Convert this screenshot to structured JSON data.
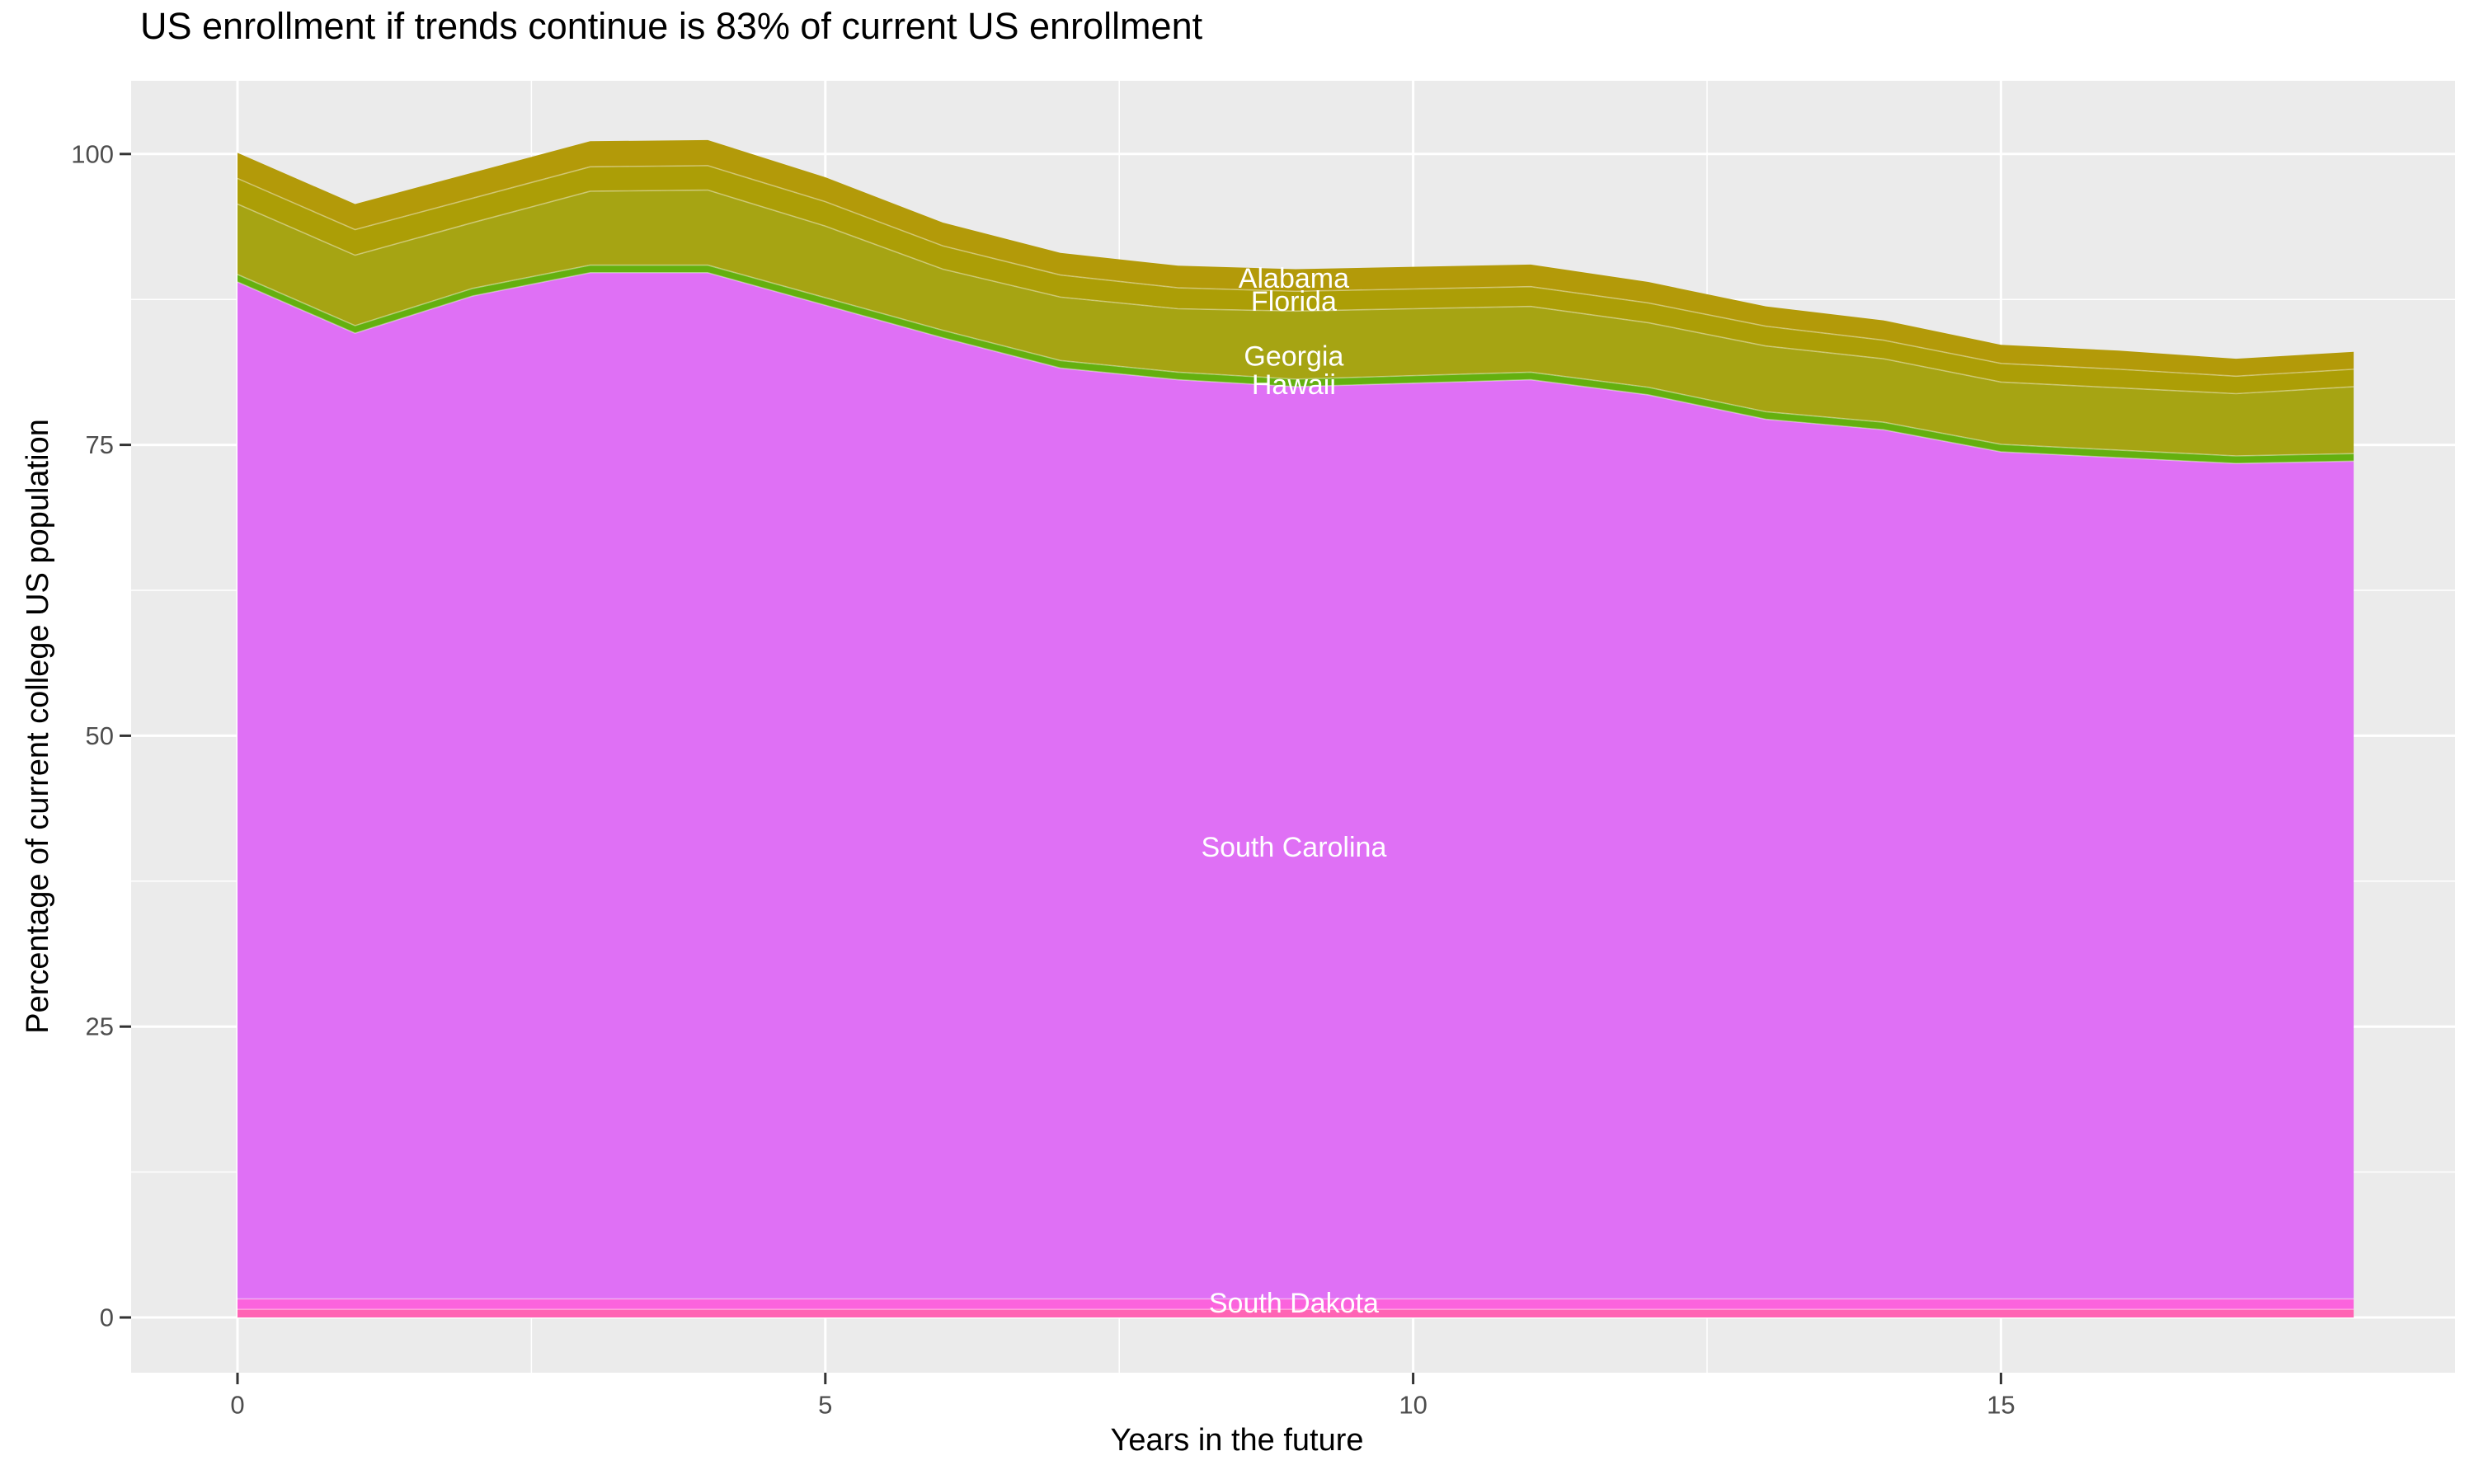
{
  "chart_data": {
    "type": "area",
    "stacked": true,
    "title": "US enrollment if trends continue is 83% of current US enrollment",
    "xlabel": "Years in the future",
    "ylabel": "Percentage of current college US population",
    "x": [
      0,
      1,
      2,
      3,
      4,
      5,
      6,
      7,
      8,
      9,
      10,
      11,
      12,
      13,
      14,
      15,
      16,
      17,
      18
    ],
    "x_ticks": [
      0,
      5,
      10,
      15
    ],
    "y_ticks": [
      0,
      25,
      50,
      75,
      100
    ],
    "xlim": [
      0,
      18
    ],
    "ylim": [
      0,
      106
    ],
    "grid": "white major and minor gridlines on gray panel",
    "legend_position": "none (direct area labels)",
    "series": [
      {
        "name": "",
        "color": "#FF64B4",
        "values": [
          0.7,
          0.7,
          0.7,
          0.7,
          0.7,
          0.7,
          0.7,
          0.7,
          0.7,
          0.7,
          0.7,
          0.7,
          0.7,
          0.7,
          0.7,
          0.7,
          0.7,
          0.7,
          0.7
        ]
      },
      {
        "name": "South Dakota",
        "color": "#FB63DD",
        "values": [
          0.9,
          0.9,
          0.9,
          0.9,
          0.9,
          0.9,
          0.9,
          0.9,
          0.9,
          0.9,
          0.9,
          0.9,
          0.9,
          0.9,
          0.9,
          0.9,
          0.9,
          0.9,
          0.9
        ]
      },
      {
        "name": "South Carolina",
        "color": "#DF70F5",
        "values": [
          87.4,
          83.0,
          86.2,
          88.2,
          88.2,
          85.4,
          82.6,
          80.0,
          79.0,
          78.4,
          78.7,
          79.0,
          77.7,
          75.6,
          74.7,
          72.8,
          72.3,
          71.8,
          72.0
        ]
      },
      {
        "name": "Hawaii",
        "color": "#64B00F",
        "values": [
          0.65,
          0.65,
          0.65,
          0.65,
          0.65,
          0.65,
          0.65,
          0.65,
          0.65,
          0.65,
          0.65,
          0.65,
          0.65,
          0.65,
          0.65,
          0.65,
          0.65,
          0.65,
          0.65
        ]
      },
      {
        "name": "Georgia",
        "color": "#A6A413",
        "values": [
          6.05,
          6.05,
          5.65,
          6.35,
          6.45,
          6.15,
          5.25,
          5.45,
          5.45,
          5.85,
          5.75,
          5.65,
          5.55,
          5.65,
          5.45,
          5.35,
          5.35,
          5.35,
          5.75
        ]
      },
      {
        "name": "Florida",
        "color": "#AC9E06",
        "values": [
          2.2,
          2.2,
          2.1,
          2.1,
          2.1,
          2.1,
          2.0,
          1.9,
          1.8,
          1.7,
          1.7,
          1.7,
          1.7,
          1.7,
          1.6,
          1.6,
          1.6,
          1.5,
          1.5
        ]
      },
      {
        "name": "Alabama",
        "color": "#B39A09",
        "values": [
          2.2,
          2.2,
          2.2,
          2.2,
          2.2,
          2.1,
          2.0,
          1.9,
          1.9,
          1.9,
          1.9,
          1.9,
          1.8,
          1.7,
          1.7,
          1.6,
          1.6,
          1.5,
          1.5
        ]
      }
    ],
    "totals_note": "stack top runs from 100 at year 0 (dip 95.7 at year 1, peak 101.2 at years 3-4) down to 83 at year 18",
    "area_labels": [
      {
        "text": "Alabama",
        "x": 8.985,
        "y": 89.3
      },
      {
        "text": "Florida",
        "x": 8.985,
        "y": 87.3
      },
      {
        "text": "Georgia",
        "x": 8.985,
        "y": 82.6
      },
      {
        "text": "Hawaii",
        "x": 8.985,
        "y": 80.15
      },
      {
        "text": "South Carolina",
        "x": 8.985,
        "y": 40.4
      },
      {
        "text": "South Dakota",
        "x": 8.985,
        "y": 1.2
      }
    ],
    "colors": {
      "panel_bg": "#EBEBEB",
      "grid": "#FFFFFF",
      "tick_mark": "#333333",
      "tick_label": "#4D4D4D",
      "area_label_text": "#FFFFFF",
      "title_text": "#000000"
    }
  }
}
